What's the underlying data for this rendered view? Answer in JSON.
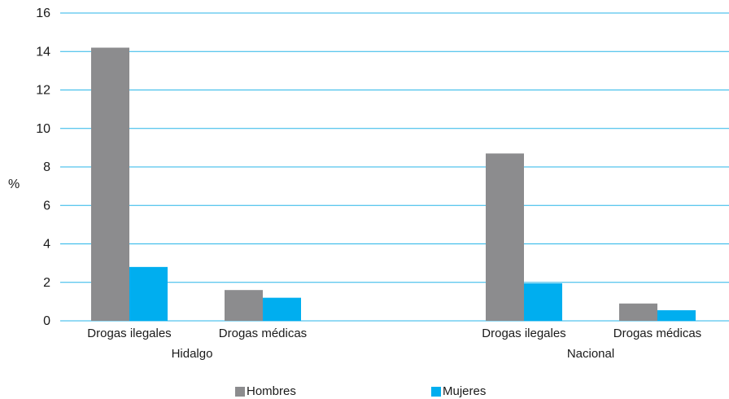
{
  "chart_data": {
    "type": "bar",
    "ylabel": "%",
    "ylim": [
      0,
      16
    ],
    "yticks": [
      0,
      2,
      4,
      6,
      8,
      10,
      12,
      14,
      16
    ],
    "grid": true,
    "legend_position": "bottom",
    "groups": [
      "Hidalgo",
      "Nacional"
    ],
    "categories": [
      "Drogas ilegales",
      "Drogas médicas"
    ],
    "series": [
      {
        "name": "Hombres",
        "color": "#8c8c8e",
        "values": [
          [
            14.2,
            1.6
          ],
          [
            8.7,
            0.9
          ]
        ]
      },
      {
        "name": "Mujeres",
        "color": "#00aeef",
        "values": [
          [
            2.8,
            1.2
          ],
          [
            1.95,
            0.55
          ]
        ]
      }
    ],
    "grid_color": "#29b6e8"
  }
}
